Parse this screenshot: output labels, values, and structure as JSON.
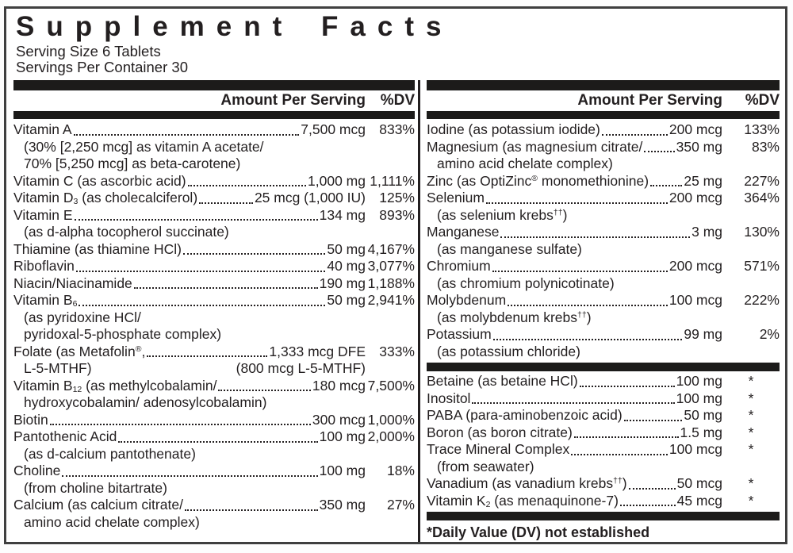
{
  "colors": {
    "text": "#231f20",
    "bar": "#1c1b1a"
  },
  "title": "Supplement Facts",
  "serving": {
    "size": "Serving Size 6 Tablets",
    "per_container": "Servings Per Container 30"
  },
  "columns": {
    "left": {
      "header": {
        "amount": "Amount Per Serving",
        "dv": "%DV"
      },
      "rows": [
        {
          "type": "entry",
          "name": "Vitamin A",
          "amount": "7,500 mcg",
          "dv": "833%"
        },
        {
          "type": "sub",
          "text": "(30% [2,250 mcg] as vitamin A acetate/"
        },
        {
          "type": "sub",
          "text": "70% [5,250 mcg] as beta-carotene)"
        },
        {
          "type": "entry",
          "name": "Vitamin C (as ascorbic acid)",
          "amount": "1,000 mg",
          "dv": "1,111%"
        },
        {
          "type": "entry",
          "name": "Vitamin D_{3} (as cholecalciferol)",
          "amount": "25 mcg (1,000 IU)",
          "dv": "125%"
        },
        {
          "type": "entry",
          "name": "Vitamin E",
          "amount": "134 mg",
          "dv": "893%"
        },
        {
          "type": "sub",
          "text": "(as d-alpha tocopherol succinate)"
        },
        {
          "type": "entry",
          "name": "Thiamine (as thiamine HCl)",
          "amount": "50 mg",
          "dv": "4,167%"
        },
        {
          "type": "entry",
          "name": "Riboflavin",
          "amount": "40 mg",
          "dv": "3,077%"
        },
        {
          "type": "entry",
          "name": "Niacin/Niacinamide",
          "amount": "190 mg",
          "dv": "1,188%"
        },
        {
          "type": "entry",
          "name": "Vitamin B_{6}",
          "amount": "50 mg",
          "dv": "2,941%"
        },
        {
          "type": "sub",
          "text": "(as pyridoxine HCl/"
        },
        {
          "type": "sub",
          "text": "pyridoxal-5-phosphate complex)"
        },
        {
          "type": "entry",
          "name": "Folate (as Metafolin^{®},",
          "amount": "1,333 mcg DFE",
          "dv": "333%"
        },
        {
          "type": "sub2",
          "left": "L-5-MTHF)",
          "right": "(800 mcg L-5-MTHF)"
        },
        {
          "type": "entry",
          "name": "Vitamin B_{12} (as methylcobalamin/",
          "amount": "180 mcg",
          "dv": "7,500%"
        },
        {
          "type": "sub",
          "text": "hydroxycobalamin/ adenosylcobalamin)"
        },
        {
          "type": "entry",
          "name": "Biotin",
          "amount": "300 mcg",
          "dv": "1,000%"
        },
        {
          "type": "entry",
          "name": "Pantothenic Acid",
          "amount": "100 mg",
          "dv": "2,000%"
        },
        {
          "type": "sub",
          "text": "(as d-calcium pantothenate)"
        },
        {
          "type": "entry",
          "name": "Choline",
          "amount": "100 mg",
          "dv": "18%"
        },
        {
          "type": "sub",
          "text": "(from choline bitartrate)"
        },
        {
          "type": "entry",
          "name": "Calcium (as calcium citrate/",
          "amount": "350 mg",
          "dv": "27%"
        },
        {
          "type": "sub",
          "text": "amino acid chelate complex)"
        }
      ]
    },
    "right": {
      "header": {
        "amount": "Amount Per Serving",
        "dv": "%DV"
      },
      "rows": [
        {
          "type": "entry",
          "name": "Iodine (as potassium iodide)",
          "amount": "200 mcg",
          "dv": "133%"
        },
        {
          "type": "entry",
          "name": "Magnesium (as magnesium citrate/",
          "amount": "350 mg",
          "dv": "83%"
        },
        {
          "type": "sub",
          "text": "amino acid chelate complex)"
        },
        {
          "type": "entry",
          "name": "Zinc (as OptiZinc^{®} monomethionine)",
          "amount": "25 mg",
          "dv": "227%"
        },
        {
          "type": "entry",
          "name": "Selenium",
          "amount": "200 mcg",
          "dv": "364%"
        },
        {
          "type": "sub",
          "text": "(as selenium krebs^{††})"
        },
        {
          "type": "entry",
          "name": "Manganese",
          "amount": "3 mg",
          "dv": "130%"
        },
        {
          "type": "sub",
          "text": "(as manganese sulfate)"
        },
        {
          "type": "entry",
          "name": "Chromium",
          "amount": "200 mcg",
          "dv": "571%"
        },
        {
          "type": "sub",
          "text": "(as chromium polynicotinate)"
        },
        {
          "type": "entry",
          "name": "Molybdenum",
          "amount": "100 mcg",
          "dv": "222%"
        },
        {
          "type": "sub",
          "text": "(as molybdenum krebs^{††})"
        },
        {
          "type": "entry",
          "name": "Potassium",
          "amount": "99 mg",
          "dv": "2%"
        },
        {
          "type": "sub",
          "text": "(as potassium chloride)"
        },
        {
          "type": "divider"
        },
        {
          "type": "entry",
          "name": "Betaine (as betaine HCl)",
          "amount": "100 mg",
          "dv": "*"
        },
        {
          "type": "entry",
          "name": "Inositol",
          "amount": "100 mg",
          "dv": "*"
        },
        {
          "type": "entry",
          "name": "PABA (para-aminobenzoic acid)",
          "amount": "50 mg",
          "dv": "*"
        },
        {
          "type": "entry",
          "name": "Boron (as boron citrate)",
          "amount": "1.5 mg",
          "dv": "*"
        },
        {
          "type": "entry",
          "name": "Trace Mineral Complex",
          "amount": "100 mcg",
          "dv": "*"
        },
        {
          "type": "sub",
          "text": "(from seawater)"
        },
        {
          "type": "entry",
          "name": "Vanadium (as vanadium krebs^{††})",
          "amount": "50 mcg",
          "dv": "*"
        },
        {
          "type": "entry",
          "name": "Vitamin K_{2} (as menaquinone-7)",
          "amount": "45 mcg",
          "dv": "*"
        },
        {
          "type": "divider"
        },
        {
          "type": "note",
          "text": "*Daily Value (DV) not established"
        }
      ]
    }
  }
}
